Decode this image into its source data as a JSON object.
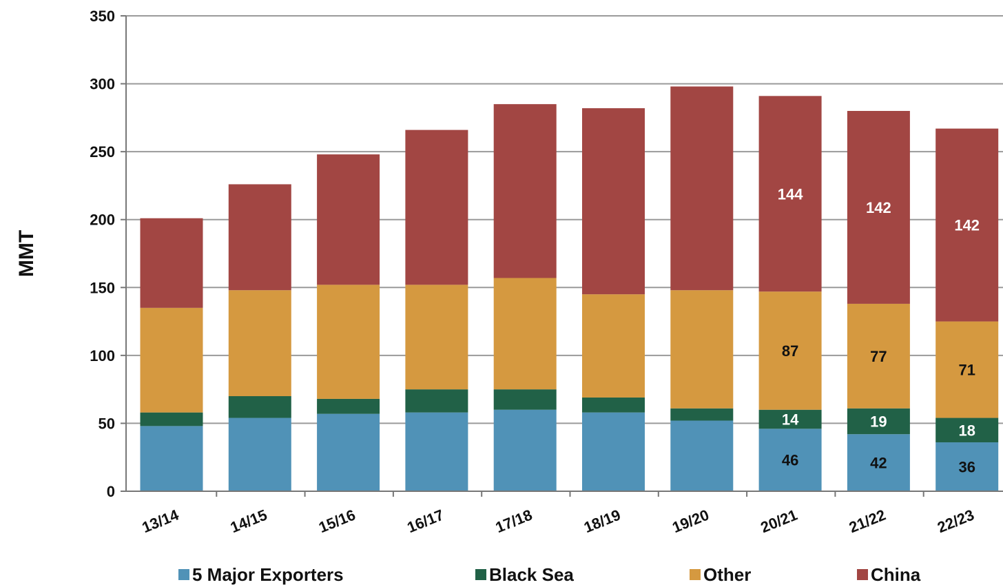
{
  "chart_data": {
    "type": "bar",
    "stacked": true,
    "ylabel": "MMT",
    "ylim": [
      0,
      350
    ],
    "yticks": [
      0,
      50,
      100,
      150,
      200,
      250,
      300,
      350
    ],
    "grid": true,
    "legend_position": "bottom",
    "categories": [
      "13/14",
      "14/15",
      "15/16",
      "16/17",
      "17/18",
      "18/19",
      "19/20",
      "20/21",
      "21/22",
      "22/23"
    ],
    "series": [
      {
        "name": "5 Major Exporters",
        "color": "#5092B7",
        "values": [
          48,
          54,
          57,
          58,
          60,
          58,
          52,
          46,
          42,
          36
        ],
        "labels": [
          null,
          null,
          null,
          null,
          null,
          null,
          null,
          "46",
          "42",
          "36"
        ],
        "label_color": "#111111"
      },
      {
        "name": "Black Sea",
        "color": "#216147",
        "values": [
          10,
          16,
          11,
          17,
          15,
          11,
          9,
          14,
          19,
          18
        ],
        "labels": [
          null,
          null,
          null,
          null,
          null,
          null,
          null,
          "14",
          "19",
          "18"
        ],
        "label_color": "#ffffff"
      },
      {
        "name": "Other",
        "color": "#D59940",
        "values": [
          77,
          78,
          84,
          77,
          82,
          76,
          87,
          87,
          77,
          71
        ],
        "labels": [
          null,
          null,
          null,
          null,
          null,
          null,
          null,
          "87",
          "77",
          "71"
        ],
        "label_color": "#111111"
      },
      {
        "name": "China",
        "color": "#A24643",
        "values": [
          66,
          78,
          96,
          114,
          128,
          137,
          150,
          144,
          142,
          142
        ],
        "labels": [
          null,
          null,
          null,
          null,
          null,
          null,
          null,
          "144",
          "142",
          "142"
        ],
        "label_color": "#ffffff"
      }
    ]
  }
}
